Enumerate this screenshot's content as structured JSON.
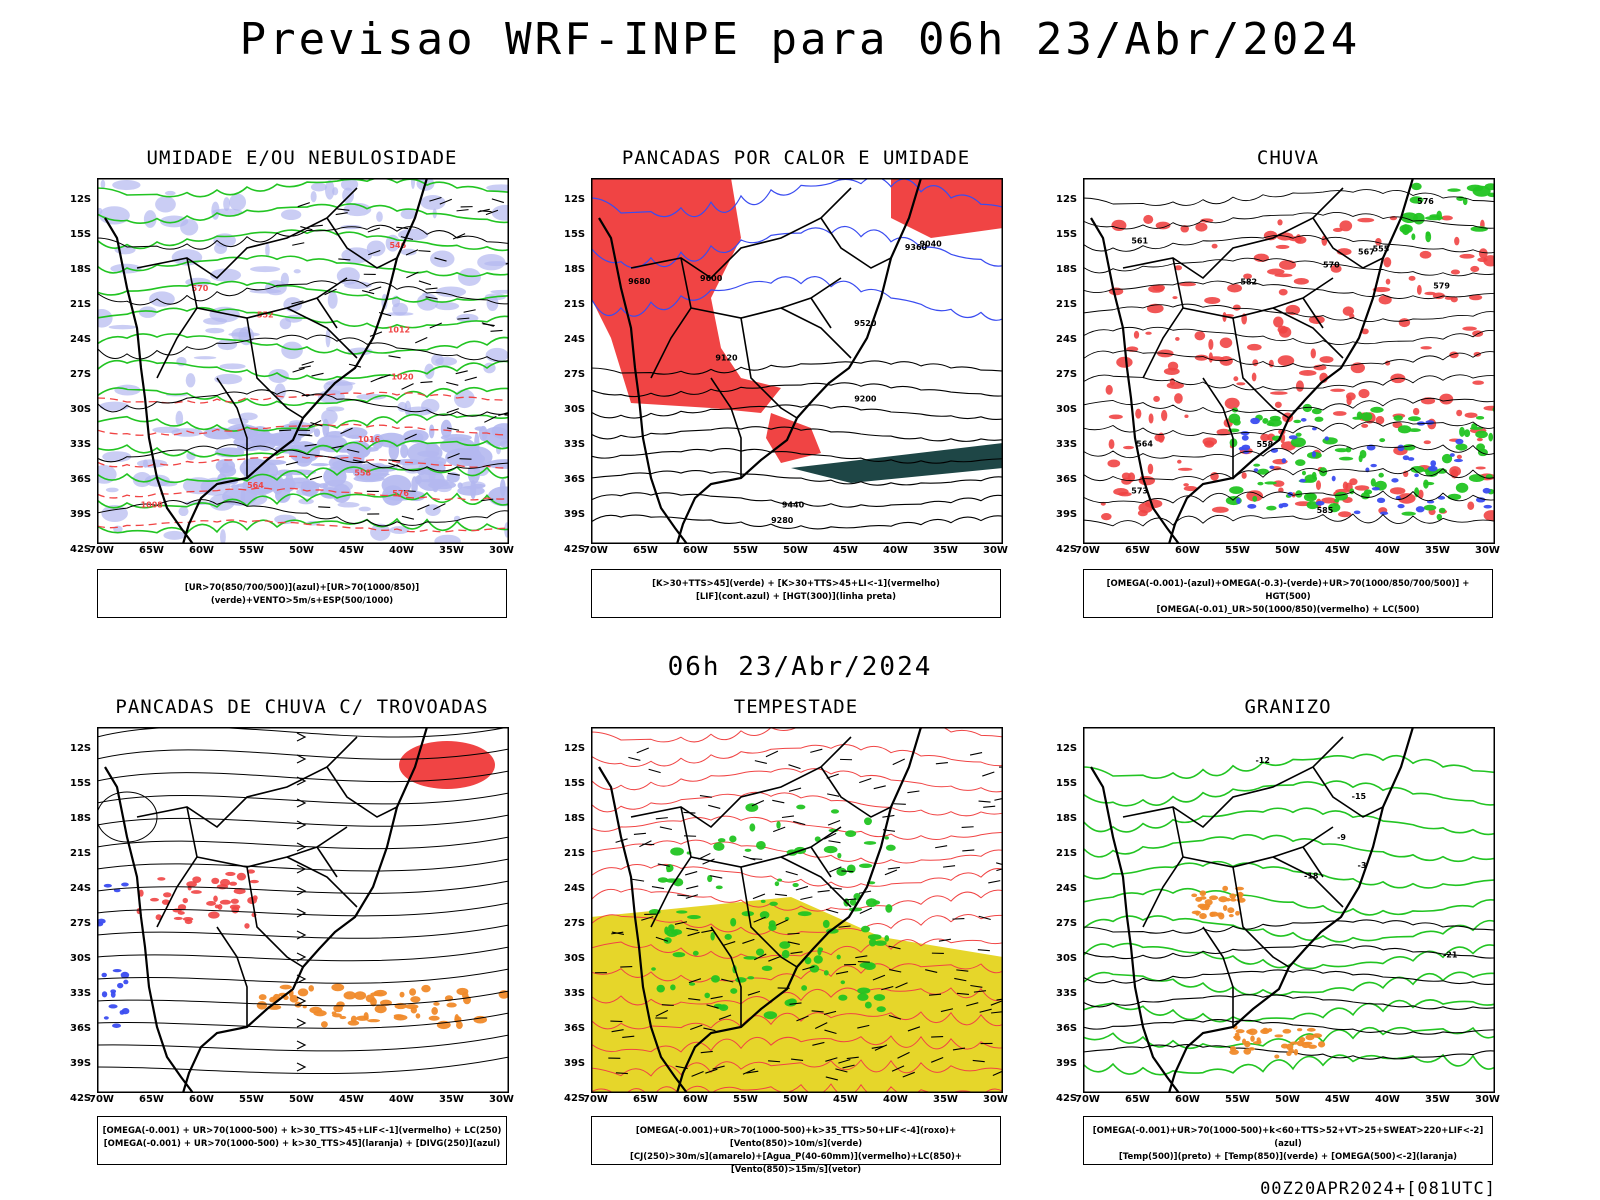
{
  "title": "Previsao WRF-INPE  para 06h 23/Abr/2024",
  "mid_date": "06h 23/Abr/2024",
  "footer": "00Z20APR2024+[081UTC]",
  "colors": {
    "map_blue_shade": "#b4b8f0",
    "map_blue": "#3a4cf0",
    "map_green": "#22c422",
    "map_red": "#f04444",
    "map_dark_teal": "#1e4646",
    "map_yellow": "#e6d62a",
    "map_orange": "#f08a2a",
    "map_black": "#000000"
  },
  "lat_labels": [
    "12S",
    "15S",
    "18S",
    "21S",
    "24S",
    "27S",
    "30S",
    "33S",
    "36S",
    "39S",
    "42S"
  ],
  "lon_labels": [
    "70W",
    "65W",
    "60W",
    "55W",
    "50W",
    "45W",
    "40W",
    "35W",
    "30W"
  ],
  "panels": [
    {
      "id": "umidade",
      "title": "UMIDADE E/OU NEBULOSIDADE",
      "legend": [
        "[UR>70(850/700/500)](azul)+[UR>70(1000/850)](verde)+VENTO>5m/s+ESP(500/1000)"
      ],
      "contour_labels": [
        "1012",
        "1016",
        "1008",
        "576",
        "570",
        "564",
        "558",
        "552",
        "546",
        "1020"
      ]
    },
    {
      "id": "pancadas-calor",
      "title": "PANCADAS POR CALOR E UMIDADE",
      "legend": [
        "[K>30+TTS>45](verde) + [K>30+TTS>45+LI<-1](vermelho)",
        "[LIF](cont.azul) + [HGT(300)](linha preta)"
      ],
      "contour_labels": [
        "9680",
        "9600",
        "9520",
        "9440",
        "9360",
        "9280",
        "9200",
        "9120",
        "9040"
      ]
    },
    {
      "id": "chuva",
      "title": "CHUVA",
      "legend": [
        "[OMEGA(-0.001)-(azul)+OMEGA(-0.3)-(verde)+UR>70(1000/850/700/500)] + HGT(500)",
        "[OMEGA(-0.01)_UR>50(1000/850)(vermelho) + LC(500)"
      ],
      "contour_labels": [
        "585",
        "582",
        "579",
        "576",
        "573",
        "570",
        "567",
        "564",
        "561",
        "558",
        "555"
      ]
    },
    {
      "id": "pancadas-trovoadas",
      "title": "PANCADAS DE CHUVA C/ TROVOADAS",
      "legend": [
        "[OMEGA(-0.001) + UR>70(1000-500) + k>30_TTS>45+LIF<-1](vermelho) + LC(250)",
        "[OMEGA(-0.001) + UR>70(1000-500) + k>30_TTS>45](laranja) + [DIVG(250)](azul)"
      ],
      "contour_labels": []
    },
    {
      "id": "tempestade",
      "title": "TEMPESTADE",
      "legend": [
        "[OMEGA(-0.001)+UR>70(1000-500)+k>35_TTS>50+LIF<-4](roxo)+[Vento(850)>10m/s](verde)",
        "[CJ(250)>30m/s](amarelo)+[Agua_P(40-60mm)](vermelho)+LC(850)+[Vento(850)>15m/s](vetor)"
      ],
      "contour_labels": []
    },
    {
      "id": "granizo",
      "title": "GRANIZO",
      "legend": [
        "[OMEGA(-0.001)+UR>70(1000-500)+k<60+TTS>52+VT>25+SWEAT>220+LIF<-2](azul)",
        "[Temp(500)](preto) + [Temp(850)](verde) + [OMEGA(500)<-2](laranja)"
      ],
      "contour_labels": [
        "-3",
        "-9",
        "-12",
        "-15",
        "-18",
        "-21"
      ]
    }
  ]
}
